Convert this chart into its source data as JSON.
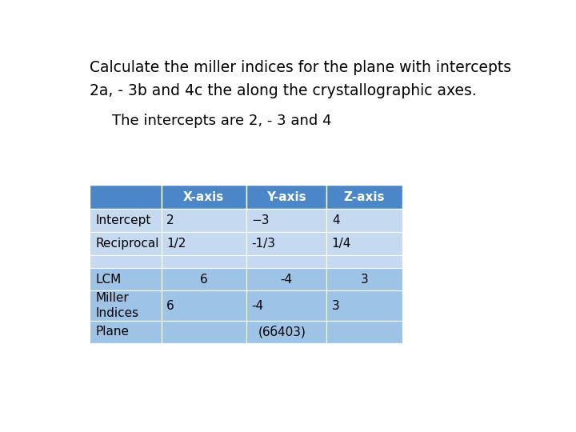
{
  "title_line1": "Calculate the miller indices for the plane with intercepts",
  "title_line2": "2a, - 3b and 4c the along the crystallographic axes.",
  "subtitle": "The intercepts are 2, - 3 and 4",
  "header_color": "#4a86c8",
  "row_color_light": "#c5d9f1",
  "row_color_medium": "#9dc3e6",
  "col_labels": [
    "",
    "X-axis",
    "Y-axis",
    "Z-axis"
  ],
  "background_color": "#ffffff",
  "title_fontsize": 13.5,
  "subtitle_fontsize": 13,
  "table_fontsize": 11
}
